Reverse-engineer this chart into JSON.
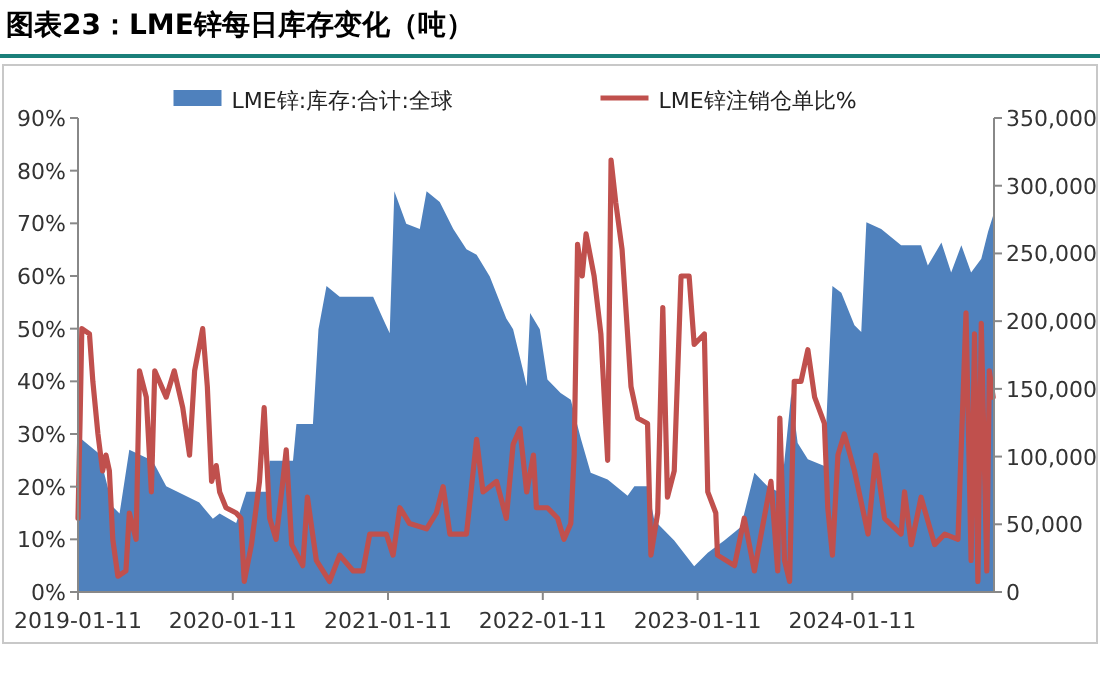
{
  "chart_data": {
    "type": "area",
    "title": "图表23：LME锌每日库存变化（吨）",
    "legend": "top",
    "xlim": [
      "2019-01-11",
      "2024-12-10"
    ],
    "xticks": [
      "2019-01-11",
      "2020-01-11",
      "2021-01-11",
      "2022-01-11",
      "2023-01-11",
      "2024-01-11"
    ],
    "ylim": [
      0,
      90
    ],
    "yticks": [
      {
        "value": 0,
        "label": "0%"
      },
      {
        "value": 10,
        "label": "10%"
      },
      {
        "value": 20,
        "label": "20%"
      },
      {
        "value": 30,
        "label": "30%"
      },
      {
        "value": 40,
        "label": "40%"
      },
      {
        "value": 50,
        "label": "50%"
      },
      {
        "value": 60,
        "label": "60%"
      },
      {
        "value": 70,
        "label": "70%"
      },
      {
        "value": 80,
        "label": "80%"
      },
      {
        "value": 90,
        "label": "90%"
      }
    ],
    "y2lim": [
      0,
      350000
    ],
    "y2ticks": [
      0,
      {
        "value": 50000,
        "label": "50,000"
      },
      {
        "value": 100000,
        "label": "100,000"
      },
      {
        "value": 150000,
        "label": "150,000"
      },
      {
        "value": 200000,
        "label": "200,000"
      },
      {
        "value": 250000,
        "label": "250,000"
      },
      {
        "value": 300000,
        "label": "300,000"
      },
      {
        "value": 350000,
        "label": "350,000"
      }
    ],
    "series": [
      {
        "name": "LME锌:库存:合计:全球",
        "axis": "y2",
        "color": "#4f81bd",
        "x": [
          "2019-01-11",
          "2019-03-02",
          "2019-04-03",
          "2019-04-19",
          "2019-05-12",
          "2019-07-06",
          "2019-08-07",
          "2019-10-24",
          "2019-11-25",
          "2019-12-11",
          "2020-01-19",
          "2020-02-12",
          "2020-03-30",
          "2020-04-07",
          "2020-06-01",
          "2020-06-09",
          "2020-07-18",
          "2020-07-31",
          "2020-08-19",
          "2020-09-19",
          "2020-12-07",
          "2020-12-30",
          "2021-01-15",
          "2021-01-26",
          "2021-02-23",
          "2021-03-27",
          "2021-04-12",
          "2021-05-13",
          "2021-06-14",
          "2021-07-15",
          "2021-08-08",
          "2021-09-08",
          "2021-10-17",
          "2021-11-02",
          "2021-11-26",
          "2021-12-04",
          "2021-12-12",
          "2022-01-04",
          "2022-01-22",
          "2022-02-22",
          "2022-03-18",
          "2022-04-11",
          "2022-05-04",
          "2022-06-13",
          "2022-07-30",
          "2022-08-15",
          "2022-09-15",
          "2022-10-01",
          "2022-11-17",
          "2023-01-03",
          "2023-02-04",
          "2023-03-15",
          "2023-04-23",
          "2023-05-25",
          "2023-06-25",
          "2023-07-27",
          "2023-08-20",
          "2023-09-04",
          "2023-09-28",
          "2023-11-06",
          "2023-11-25",
          "2023-12-16",
          "2024-01-16",
          "2024-02-01",
          "2024-02-13",
          "2024-03-19",
          "2024-05-05",
          "2024-06-21",
          "2024-07-07",
          "2024-08-08",
          "2024-08-31",
          "2024-09-24",
          "2024-10-17",
          "2024-11-10",
          "2024-11-26",
          "2024-12-08"
        ],
        "values": [
          115000,
          102000,
          63000,
          58000,
          105000,
          97000,
          78000,
          66000,
          54000,
          58000,
          51000,
          74000,
          74000,
          97000,
          97000,
          124000,
          124000,
          194000,
          226000,
          218000,
          218000,
          202000,
          191000,
          296000,
          272000,
          268000,
          296000,
          288000,
          268000,
          253000,
          249000,
          233000,
          202000,
          194000,
          163000,
          152000,
          206000,
          194000,
          157000,
          147000,
          142000,
          113000,
          88000,
          83000,
          71000,
          78000,
          78000,
          53000,
          38000,
          19000,
          29000,
          38000,
          48000,
          88000,
          78000,
          73000,
          147000,
          110000,
          98000,
          93000,
          226000,
          221000,
          197000,
          192000,
          273000,
          268000,
          256000,
          256000,
          241000,
          258000,
          236000,
          256000,
          236000,
          246000,
          266000,
          278000
        ]
      },
      {
        "name": "LME锌注销仓单比%",
        "type": "line",
        "axis": "y",
        "color": "#c0504d",
        "x": [
          "2019-01-11",
          "2019-01-16",
          "2019-01-20",
          "2019-02-07",
          "2019-02-15",
          "2019-02-27",
          "2019-03-10",
          "2019-03-18",
          "2019-03-26",
          "2019-04-03",
          "2019-04-15",
          "2019-05-04",
          "2019-05-12",
          "2019-05-28",
          "2019-06-05",
          "2019-06-21",
          "2019-07-03",
          "2019-07-11",
          "2019-08-07",
          "2019-08-26",
          "2019-09-15",
          "2019-10-01",
          "2019-10-13",
          "2019-11-01",
          "2019-11-12",
          "2019-11-22",
          "2019-12-03",
          "2019-12-11",
          "2019-12-26",
          "2020-01-19",
          "2020-01-30",
          "2020-02-07",
          "2020-02-24",
          "2020-03-14",
          "2020-03-25",
          "2020-04-07",
          "2020-04-22",
          "2020-05-08",
          "2020-05-16",
          "2020-05-29",
          "2020-06-24",
          "2020-07-05",
          "2020-07-26",
          "2020-08-26",
          "2020-09-19",
          "2020-10-21",
          "2020-11-13",
          "2020-11-29",
          "2021-01-07",
          "2021-01-23",
          "2021-02-08",
          "2021-03-03",
          "2021-04-12",
          "2021-05-05",
          "2021-05-21",
          "2021-06-06",
          "2021-07-15",
          "2021-08-08",
          "2021-08-23",
          "2021-09-24",
          "2021-10-17",
          "2021-11-02",
          "2021-11-18",
          "2021-12-04",
          "2021-12-20",
          "2021-12-27",
          "2022-01-22",
          "2022-02-15",
          "2022-03-02",
          "2022-03-18",
          "2022-03-26",
          "2022-04-03",
          "2022-04-14",
          "2022-04-23",
          "2022-05-12",
          "2022-05-28",
          "2022-06-13",
          "2022-06-21",
          "2022-07-02",
          "2022-07-17",
          "2022-08-07",
          "2022-08-23",
          "2022-09-15",
          "2022-09-23",
          "2022-10-09",
          "2022-10-21",
          "2022-11-01",
          "2022-11-17",
          "2022-12-03",
          "2022-12-22",
          "2023-01-03",
          "2023-01-27",
          "2023-02-04",
          "2023-02-23",
          "2023-02-27",
          "2023-04-08",
          "2023-05-01",
          "2023-05-25",
          "2023-06-10",
          "2023-07-03",
          "2023-07-19",
          "2023-07-24",
          "2023-08-04",
          "2023-08-16",
          "2023-08-27",
          "2023-09-12",
          "2023-09-28",
          "2023-10-14",
          "2023-11-06",
          "2023-11-14",
          "2023-11-25",
          "2023-12-08",
          "2023-12-23",
          "2024-01-16",
          "2024-02-17",
          "2024-03-06",
          "2024-03-27",
          "2024-05-05",
          "2024-05-13",
          "2024-05-29",
          "2024-06-21",
          "2024-07-23",
          "2024-08-16",
          "2024-09-16",
          "2024-10-05",
          "2024-10-17",
          "2024-10-25",
          "2024-11-02",
          "2024-11-10",
          "2024-11-23",
          "2024-11-29",
          "2024-12-08"
        ],
        "values": [
          14,
          33,
          50,
          49,
          40,
          30,
          23,
          26,
          23,
          10,
          3,
          4,
          15,
          10,
          42,
          37,
          19,
          42,
          37,
          42,
          35,
          26,
          42,
          50,
          39,
          21,
          24,
          19,
          16,
          15,
          14,
          2,
          9,
          21,
          35,
          14,
          10,
          21,
          27,
          9,
          5,
          18,
          6,
          2,
          7,
          4,
          4,
          11,
          11,
          7,
          16,
          13,
          12,
          15,
          20,
          11,
          11,
          29,
          19,
          21,
          14,
          28,
          31,
          19,
          26,
          16,
          16,
          14,
          10,
          13,
          26,
          66,
          60,
          68,
          60,
          49,
          25,
          82,
          74,
          65,
          39,
          33,
          32,
          7,
          15,
          54,
          18,
          23,
          60,
          60,
          47,
          49,
          19,
          15,
          7,
          5,
          14,
          4,
          11,
          21,
          4,
          33,
          6,
          2,
          40,
          40,
          46,
          37,
          32,
          16,
          7,
          26,
          30,
          23,
          11,
          26,
          14,
          11,
          19,
          9,
          18,
          9,
          11,
          10,
          53,
          6,
          49,
          2,
          51,
          4,
          42,
          37
        ]
      }
    ]
  }
}
